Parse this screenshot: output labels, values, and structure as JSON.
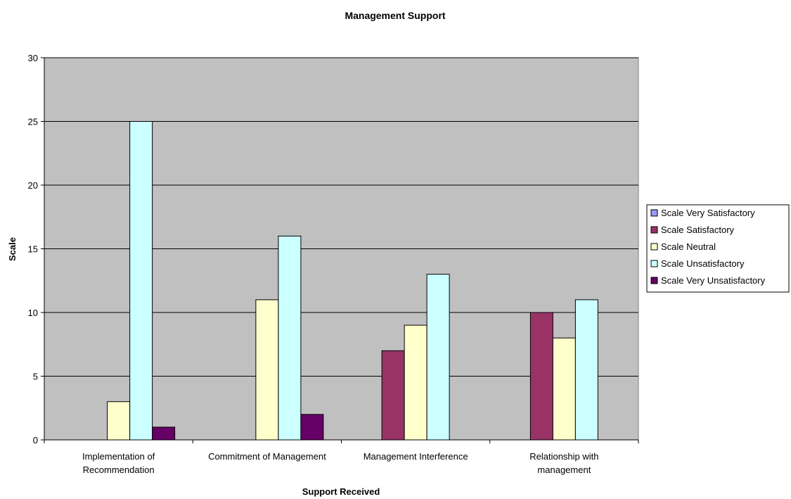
{
  "chart_data": {
    "type": "bar",
    "title": "Management Support",
    "xlabel": "Support Received",
    "ylabel": "Scale",
    "ylim": [
      0,
      30
    ],
    "yticks": [
      0,
      5,
      10,
      15,
      20,
      25,
      30
    ],
    "categories": [
      [
        "Implementation of",
        "Recommendation"
      ],
      [
        "Commitment of Management"
      ],
      [
        "Management Interference"
      ],
      [
        "Relationship with",
        "management"
      ]
    ],
    "series": [
      {
        "name": "Scale Very Satisfactory",
        "color": "#9999ff",
        "values": [
          0,
          0,
          0,
          0
        ]
      },
      {
        "name": "Scale Satisfactory",
        "color": "#993366",
        "values": [
          0,
          0,
          7,
          10
        ]
      },
      {
        "name": "Scale Neutral",
        "color": "#ffffcc",
        "values": [
          3,
          11,
          9,
          8
        ]
      },
      {
        "name": "Scale Unsatisfactory",
        "color": "#ccffff",
        "values": [
          25,
          16,
          13,
          11
        ]
      },
      {
        "name": "Scale Very Unsatisfactory",
        "color": "#660066",
        "values": [
          1,
          2,
          0,
          0
        ]
      }
    ],
    "plot_background": "#c0c0c0",
    "grid": true,
    "legend_position": "right"
  }
}
